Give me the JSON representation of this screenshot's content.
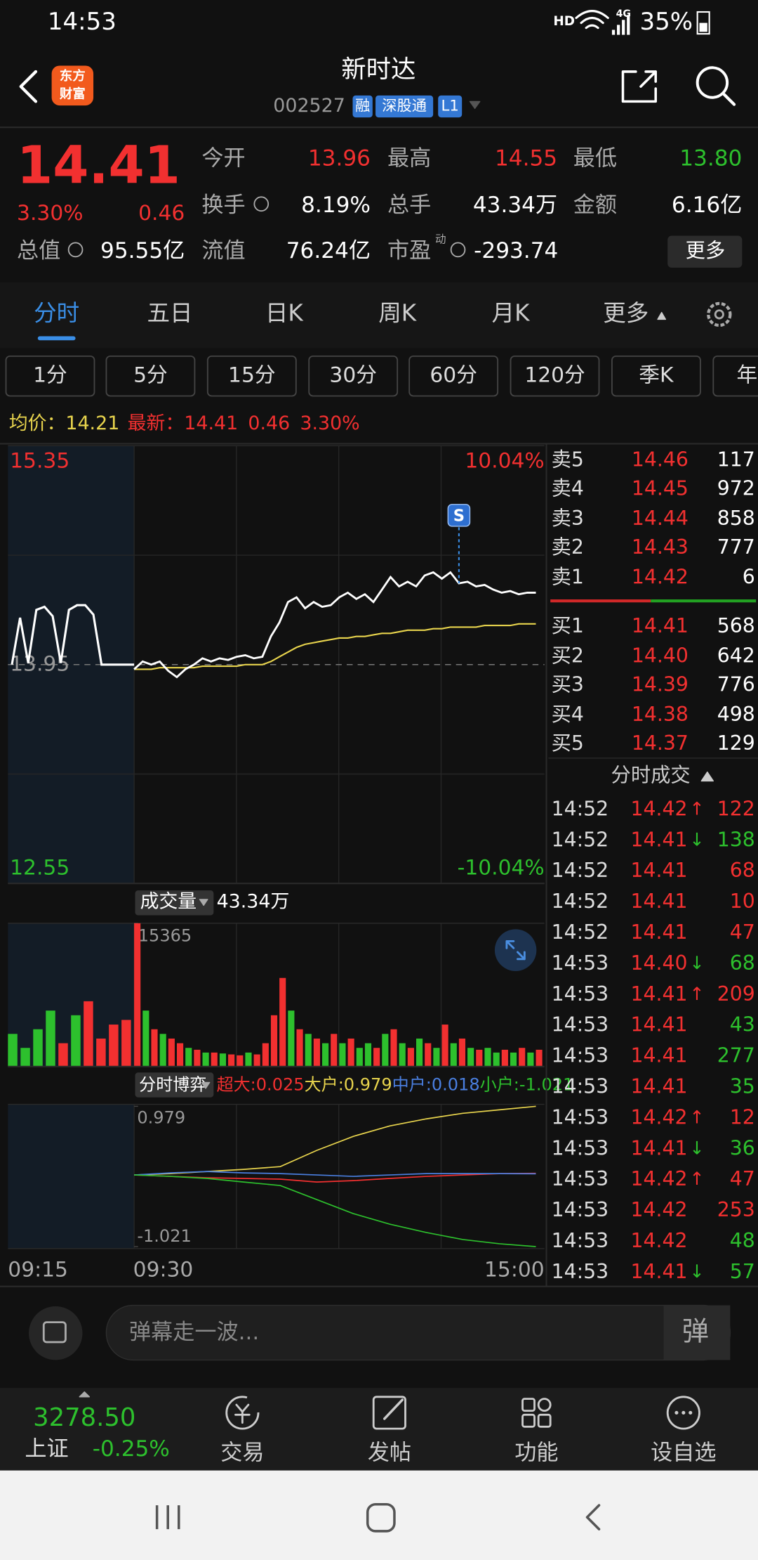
{
  "status": {
    "time": "14:53",
    "hd": "HD",
    "network": "4G",
    "battery": "35%"
  },
  "header": {
    "logo": [
      "东方",
      "财富"
    ],
    "title": "新时达",
    "code": "002527",
    "tags": [
      "融",
      "深股通",
      "L1"
    ]
  },
  "quote": {
    "price": "14.41",
    "pct": "3.30%",
    "change": "0.46",
    "grid": [
      [
        {
          "label": "今开",
          "value": "13.96",
          "color": "#f23030"
        },
        {
          "label": "最高",
          "value": "14.55",
          "color": "#f23030"
        },
        {
          "label": "最低",
          "value": "13.80",
          "color": "#2dc02d"
        }
      ],
      [
        {
          "label": "换手",
          "value": "8.19%",
          "color": "#ffffff"
        },
        {
          "label": "总手",
          "value": "43.34万",
          "color": "#ffffff"
        },
        {
          "label": "金额",
          "value": "6.16亿",
          "color": "#ffffff"
        }
      ],
      [
        {
          "label": "总值",
          "value": "95.55亿",
          "color": "#ffffff"
        },
        {
          "label": "流值",
          "value": "76.24亿",
          "color": "#ffffff"
        },
        {
          "label": "市盈",
          "sup": "动",
          "value": "-293.74",
          "color": "#ffffff"
        }
      ]
    ],
    "more": "更多"
  },
  "tabs": {
    "items": [
      "分时",
      "五日",
      "日K",
      "周K",
      "月K",
      "更多"
    ],
    "active": 0
  },
  "periods": [
    "1分",
    "5分",
    "15分",
    "30分",
    "60分",
    "120分",
    "季K",
    "年"
  ],
  "info": {
    "avg_label": "均价：",
    "avg": "14.21",
    "last_label": "最新：",
    "last": "14.41",
    "change": "0.46",
    "pct": "3.30%"
  },
  "chart_data": [
    {
      "type": "line",
      "ylim": [
        12.55,
        15.35
      ],
      "yticks": [
        15.35,
        13.95,
        12.55
      ],
      "y2lim": [
        -10.04,
        10.04
      ],
      "y2ticks": [
        {
          "value": 10.04,
          "label": "10.04%"
        },
        {
          "value": -10.04,
          "label": "-10.04%"
        }
      ],
      "xticks": [
        "09:15",
        "09:30",
        "15:00"
      ],
      "auction": {
        "color": "#ffffff",
        "values": [
          13.95,
          14.25,
          13.96,
          14.3,
          14.32,
          14.26,
          13.96,
          14.3,
          14.33,
          14.33,
          14.27,
          13.95,
          13.95,
          13.95,
          13.95,
          13.95
        ]
      },
      "series": [
        {
          "color": "#ffffff",
          "values": [
            13.92,
            13.97,
            13.95,
            13.97,
            13.91,
            13.87,
            13.92,
            13.95,
            13.99,
            13.97,
            13.99,
            13.98,
            14.0,
            14.01,
            13.99,
            14.0,
            14.13,
            14.22,
            14.35,
            14.38,
            14.31,
            14.35,
            14.32,
            14.33,
            14.38,
            14.41,
            14.37,
            14.4,
            14.35,
            14.43,
            14.51,
            14.45,
            14.48,
            14.45,
            14.52,
            14.54,
            14.5,
            14.54,
            14.47,
            14.48,
            14.45,
            14.46,
            14.43,
            14.41,
            14.42,
            14.4,
            14.41,
            14.41
          ]
        },
        {
          "color": "#e8d44d",
          "values": [
            13.92,
            13.92,
            13.92,
            13.93,
            13.93,
            13.93,
            13.93,
            13.93,
            13.94,
            13.94,
            13.94,
            13.94,
            13.94,
            13.95,
            13.95,
            13.95,
            13.97,
            14.0,
            14.03,
            14.06,
            14.08,
            14.09,
            14.1,
            14.11,
            14.12,
            14.12,
            14.13,
            14.13,
            14.14,
            14.15,
            14.15,
            14.16,
            14.17,
            14.17,
            14.17,
            14.18,
            14.18,
            14.19,
            14.19,
            14.19,
            14.19,
            14.2,
            14.2,
            14.2,
            14.2,
            14.21,
            14.21,
            14.21
          ]
        }
      ],
      "signal": "S"
    },
    {
      "type": "bar",
      "label": "成交量",
      "total": "43.34万",
      "ylim": [
        0,
        15365
      ],
      "yticks": [
        15365
      ],
      "values": [
        15365,
        6000,
        4000,
        3500,
        3000,
        2500,
        2000,
        1800,
        1500,
        1500,
        1400,
        1300,
        1200,
        1500,
        1300,
        2500,
        5500,
        9500,
        6000,
        4000,
        3500,
        3000,
        2500,
        3500,
        2500,
        3000,
        2000,
        2500,
        2000,
        3500,
        4000,
        2500,
        2000,
        3000,
        2500,
        2000,
        4500,
        2500,
        3000,
        2000,
        1800,
        2000,
        1500,
        1800,
        1500,
        2000,
        1500,
        1800
      ],
      "colors": [
        "#f23030",
        "#2dc02d",
        "#f23030",
        "#2dc02d",
        "#f23030",
        "#f23030",
        "#2dc02d",
        "#f23030",
        "#2dc02d",
        "#f23030",
        "#2dc02d",
        "#f23030",
        "#f23030",
        "#2dc02d",
        "#f23030",
        "#f23030",
        "#f23030",
        "#f23030",
        "#2dc02d",
        "#f23030",
        "#2dc02d",
        "#f23030",
        "#2dc02d",
        "#f23030",
        "#2dc02d",
        "#f23030",
        "#2dc02d",
        "#2dc02d",
        "#f23030",
        "#2dc02d",
        "#f23030",
        "#2dc02d",
        "#f23030",
        "#2dc02d",
        "#f23030",
        "#2dc02d",
        "#f23030",
        "#2dc02d",
        "#f23030",
        "#2dc02d",
        "#f23030",
        "#2dc02d",
        "#2dc02d",
        "#f23030",
        "#2dc02d",
        "#f23030",
        "#2dc02d",
        "#f23030"
      ],
      "auction_values": [
        3500,
        2000,
        4000,
        6000,
        2500,
        5500,
        7000,
        3000,
        4500,
        5000
      ],
      "auction_colors": [
        "#2dc02d",
        "#2dc02d",
        "#2dc02d",
        "#2dc02d",
        "#f23030",
        "#2dc02d",
        "#f23030",
        "#f23030",
        "#f23030",
        "#f23030"
      ]
    },
    {
      "type": "line",
      "label": "分时博弈",
      "ylim": [
        -1.021,
        0.979
      ],
      "yticks": [
        0.979,
        -1.021
      ],
      "series": [
        {
          "name": "超大:0.025",
          "color": "#f23030",
          "values": [
            0,
            -0.02,
            -0.04,
            -0.05,
            -0.06,
            -0.1,
            -0.08,
            -0.05,
            -0.02,
            0,
            0.02,
            0.025
          ]
        },
        {
          "name": "大户:0.979",
          "color": "#e8d44d",
          "values": [
            0,
            0.02,
            0.05,
            0.08,
            0.12,
            0.35,
            0.55,
            0.7,
            0.8,
            0.88,
            0.93,
            0.979
          ]
        },
        {
          "name": "中户:0.018",
          "color": "#4a7fe0",
          "values": [
            0,
            0.03,
            0.05,
            0.03,
            0.02,
            0,
            -0.02,
            0,
            0.02,
            0.02,
            0.02,
            0.018
          ]
        },
        {
          "name": "小户:-1.021",
          "color": "#2dc02d",
          "values": [
            0,
            -0.02,
            -0.05,
            -0.1,
            -0.15,
            -0.35,
            -0.55,
            -0.7,
            -0.82,
            -0.92,
            -0.98,
            -1.021
          ]
        }
      ]
    }
  ],
  "order_book": {
    "asks": [
      {
        "label": "卖5",
        "price": "14.46",
        "qty": "117"
      },
      {
        "label": "卖4",
        "price": "14.45",
        "qty": "972"
      },
      {
        "label": "卖3",
        "price": "14.44",
        "qty": "858"
      },
      {
        "label": "卖2",
        "price": "14.43",
        "qty": "777"
      },
      {
        "label": "卖1",
        "price": "14.42",
        "qty": "6"
      }
    ],
    "bids": [
      {
        "label": "买1",
        "price": "14.41",
        "qty": "568"
      },
      {
        "label": "买2",
        "price": "14.40",
        "qty": "642"
      },
      {
        "label": "买3",
        "price": "14.39",
        "qty": "776"
      },
      {
        "label": "买4",
        "price": "14.38",
        "qty": "498"
      },
      {
        "label": "买5",
        "price": "14.37",
        "qty": "129"
      }
    ]
  },
  "trades": {
    "title": "分时成交",
    "rows": [
      {
        "time": "14:52",
        "price": "14.42",
        "dir": "↑",
        "dir_color": "#f23030",
        "vol": "122",
        "vol_color": "#f23030"
      },
      {
        "time": "14:52",
        "price": "14.41",
        "dir": "↓",
        "dir_color": "#2dc02d",
        "vol": "138",
        "vol_color": "#2dc02d"
      },
      {
        "time": "14:52",
        "price": "14.41",
        "vol": "68",
        "vol_color": "#f23030"
      },
      {
        "time": "14:52",
        "price": "14.41",
        "vol": "10",
        "vol_color": "#f23030"
      },
      {
        "time": "14:52",
        "price": "14.41",
        "vol": "47",
        "vol_color": "#f23030"
      },
      {
        "time": "14:53",
        "price": "14.40",
        "dir": "↓",
        "dir_color": "#2dc02d",
        "vol": "68",
        "vol_color": "#2dc02d"
      },
      {
        "time": "14:53",
        "price": "14.41",
        "dir": "↑",
        "dir_color": "#f23030",
        "vol": "209",
        "vol_color": "#f23030"
      },
      {
        "time": "14:53",
        "price": "14.41",
        "vol": "43",
        "vol_color": "#2dc02d"
      },
      {
        "time": "14:53",
        "price": "14.41",
        "vol": "277",
        "vol_color": "#2dc02d"
      },
      {
        "time": "14:53",
        "price": "14.41",
        "vol": "35",
        "vol_color": "#2dc02d"
      },
      {
        "time": "14:53",
        "price": "14.42",
        "dir": "↑",
        "dir_color": "#f23030",
        "vol": "12",
        "vol_color": "#f23030"
      },
      {
        "time": "14:53",
        "price": "14.41",
        "dir": "↓",
        "dir_color": "#2dc02d",
        "vol": "36",
        "vol_color": "#2dc02d"
      },
      {
        "time": "14:53",
        "price": "14.42",
        "dir": "↑",
        "dir_color": "#f23030",
        "vol": "47",
        "vol_color": "#f23030"
      },
      {
        "time": "14:53",
        "price": "14.42",
        "vol": "253",
        "vol_color": "#f23030"
      },
      {
        "time": "14:53",
        "price": "14.42",
        "vol": "48",
        "vol_color": "#2dc02d"
      },
      {
        "time": "14:53",
        "price": "14.41",
        "dir": "↓",
        "dir_color": "#2dc02d",
        "vol": "57",
        "vol_color": "#2dc02d"
      }
    ]
  },
  "comment": {
    "placeholder": "弹幕走一波...",
    "button": "弹"
  },
  "bottom_nav": {
    "index_value": "3278.50",
    "index_name": "上证",
    "index_change": "-0.25%",
    "items": [
      "交易",
      "发帖",
      "功能",
      "设自选"
    ]
  }
}
